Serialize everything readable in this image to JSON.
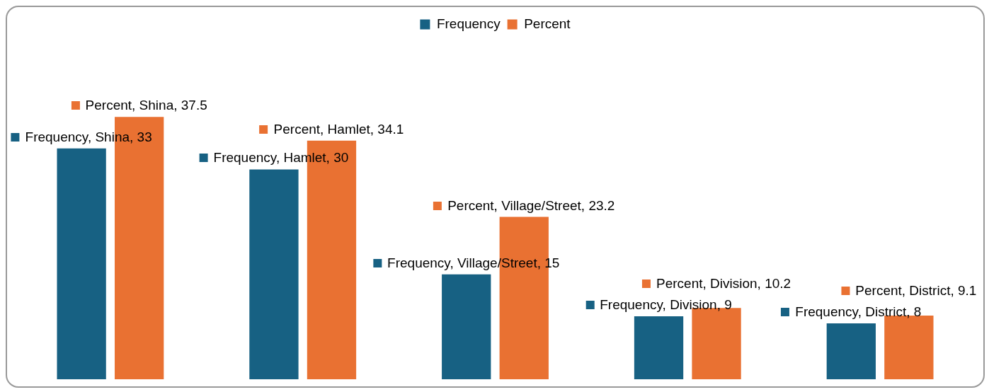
{
  "chart_data": {
    "type": "bar",
    "categories": [
      null,
      null,
      null,
      null,
      null
    ],
    "series": [
      {
        "name": "Frequency",
        "color": "#176183",
        "values": [
          33,
          30,
          15,
          9,
          8
        ],
        "value_labels": [
          "Frequency, Shina, 33",
          "Frequency, Hamlet, 30",
          "Frequency, Village/Street, 15",
          "Frequency, Division, 9",
          "Frequency, District, 8"
        ]
      },
      {
        "name": "Percent",
        "color": "#e97132",
        "values": [
          37.5,
          34.1,
          23.2,
          10.2,
          9.1
        ],
        "value_labels": [
          "Percent, Shina, 37.5",
          "Percent, Hamlet, 34.1",
          "Percent, Village/Street, 23.2",
          "Percent, Division, 10.2",
          "Percent, District, 9.1"
        ]
      }
    ],
    "legend": "top",
    "tick_labels": false
  }
}
